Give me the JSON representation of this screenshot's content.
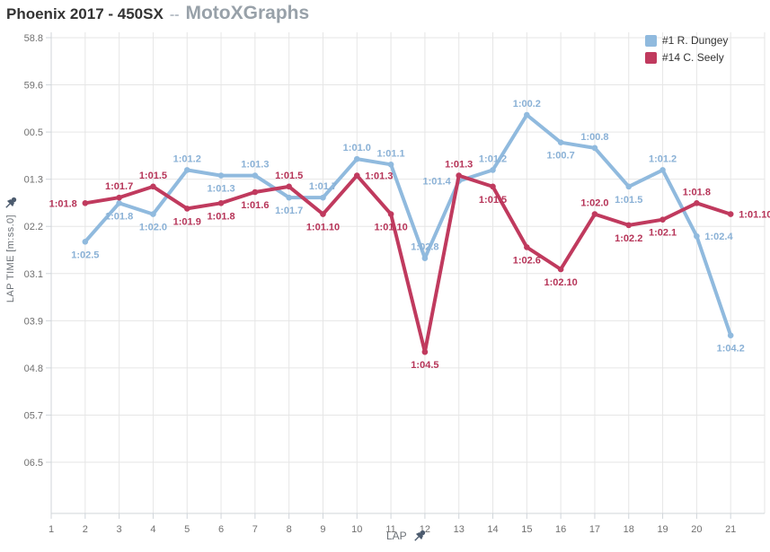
{
  "title": {
    "main": "Phoenix 2017 - 450SX",
    "separator": "--",
    "brand": "MotoXGraphs"
  },
  "icons": {
    "x_axis_pin": "pushpin-icon",
    "y_axis_pin": "pushpin-icon"
  },
  "colors": {
    "title_text": "#333333",
    "brand_text": "#98a1a9",
    "separator_text": "#b9c0c7",
    "grid": "#e6e6e6",
    "axis_line": "#d0d5da",
    "tick_text": "#707070",
    "axis_title_text": "#6b7076",
    "pin": "#4c5b6e",
    "background": "#ffffff",
    "dungey_blue": "#90bade",
    "seely_red": "#c03a5e"
  },
  "chart_data": {
    "type": "line",
    "title": "Phoenix 2017 - 450SX -- MotoXGraphs",
    "xlabel": "LAP",
    "ylabel": "LAP TIME [m:ss.0]",
    "grid": true,
    "legend_position": "top-right",
    "x_ticks": [
      1,
      2,
      3,
      4,
      5,
      6,
      7,
      8,
      9,
      10,
      11,
      12,
      13,
      14,
      15,
      16,
      17,
      18,
      19,
      20,
      21
    ],
    "x_range": [
      1,
      22
    ],
    "y_tick_labels": [
      "58.8",
      "59.6",
      "00.5",
      "01.3",
      "02.2",
      "03.1",
      "03.9",
      "04.8",
      "05.7",
      "06.5"
    ],
    "y_axis_seconds_range": [
      58.8,
      66.5
    ],
    "y_axis_direction": "time increases downward (faster laps plotted higher)",
    "series": [
      {
        "id": "dungey",
        "name": "#1 R. Dungey",
        "color": "#90bade",
        "label_color": "#8ab1d6",
        "points": [
          {
            "lap": 2,
            "time": "1:02.5",
            "seconds": 62.5,
            "label_side": "below"
          },
          {
            "lap": 3,
            "time": "1:01.8",
            "seconds": 61.8,
            "label_side": "below"
          },
          {
            "lap": 4,
            "time": "1:02.0",
            "seconds": 62.0,
            "label_side": "below"
          },
          {
            "lap": 5,
            "time": "1:01.2",
            "seconds": 61.2,
            "label_side": "above"
          },
          {
            "lap": 6,
            "time": "1:01.3",
            "seconds": 61.3,
            "label_side": "below"
          },
          {
            "lap": 7,
            "time": "1:01.3",
            "seconds": 61.3,
            "label_side": "above"
          },
          {
            "lap": 8,
            "time": "1:01.7",
            "seconds": 61.7,
            "label_side": "below"
          },
          {
            "lap": 9,
            "time": "1:01.7",
            "seconds": 61.7,
            "label_side": "above"
          },
          {
            "lap": 10,
            "time": "1:01.0",
            "seconds": 61.0,
            "label_side": "above"
          },
          {
            "lap": 11,
            "time": "1:01.1",
            "seconds": 61.1,
            "label_side": "above"
          },
          {
            "lap": 12,
            "time": "1:02.8",
            "seconds": 62.8,
            "label_side": "above"
          },
          {
            "lap": 13,
            "time": "1:01.4",
            "seconds": 61.4,
            "label_side": "left"
          },
          {
            "lap": 14,
            "time": "1:01.2",
            "seconds": 61.2,
            "label_side": "above"
          },
          {
            "lap": 15,
            "time": "1:00.2",
            "seconds": 60.2,
            "label_side": "above"
          },
          {
            "lap": 16,
            "time": "1:00.7",
            "seconds": 60.7,
            "label_side": "below"
          },
          {
            "lap": 17,
            "time": "1:00.8",
            "seconds": 60.8,
            "label_side": "above"
          },
          {
            "lap": 18,
            "time": "1:01.5",
            "seconds": 61.5,
            "label_side": "below"
          },
          {
            "lap": 19,
            "time": "1:01.2",
            "seconds": 61.2,
            "label_side": "above"
          },
          {
            "lap": 20,
            "time": "1:02.4",
            "seconds": 62.4,
            "label_side": "right"
          },
          {
            "lap": 21,
            "time": "1:04.2",
            "seconds": 64.2,
            "label_side": "below"
          }
        ]
      },
      {
        "id": "seely",
        "name": "#14 C. Seely",
        "color": "#c03a5e",
        "label_color": "#b63458",
        "points": [
          {
            "lap": 2,
            "time": "1:01.8",
            "seconds": 61.8,
            "label_side": "left"
          },
          {
            "lap": 3,
            "time": "1:01.7",
            "seconds": 61.7,
            "label_side": "above"
          },
          {
            "lap": 4,
            "time": "1:01.5",
            "seconds": 61.5,
            "label_side": "above"
          },
          {
            "lap": 5,
            "time": "1:01.9",
            "seconds": 61.9,
            "label_side": "below"
          },
          {
            "lap": 6,
            "time": "1:01.8",
            "seconds": 61.8,
            "label_side": "below"
          },
          {
            "lap": 7,
            "time": "1:01.6",
            "seconds": 61.6,
            "label_side": "below"
          },
          {
            "lap": 8,
            "time": "1:01.5",
            "seconds": 61.5,
            "label_side": "above"
          },
          {
            "lap": 9,
            "time": "1:01.10",
            "seconds": 62.0,
            "label_side": "below"
          },
          {
            "lap": 10,
            "time": "1:01.3",
            "seconds": 61.3,
            "label_side": "right"
          },
          {
            "lap": 11,
            "time": "1:01.10",
            "seconds": 62.0,
            "label_side": "below"
          },
          {
            "lap": 12,
            "time": "1:04.5",
            "seconds": 64.5,
            "label_side": "below"
          },
          {
            "lap": 13,
            "time": "1:01.3",
            "seconds": 61.3,
            "label_side": "above"
          },
          {
            "lap": 14,
            "time": "1:01.5",
            "seconds": 61.5,
            "label_side": "below"
          },
          {
            "lap": 15,
            "time": "1:02.6",
            "seconds": 62.6,
            "label_side": "below"
          },
          {
            "lap": 16,
            "time": "1:02.10",
            "seconds": 63.0,
            "label_side": "below"
          },
          {
            "lap": 17,
            "time": "1:02.0",
            "seconds": 62.0,
            "label_side": "above"
          },
          {
            "lap": 18,
            "time": "1:02.2",
            "seconds": 62.2,
            "label_side": "below"
          },
          {
            "lap": 19,
            "time": "1:02.1",
            "seconds": 62.1,
            "label_side": "below"
          },
          {
            "lap": 20,
            "time": "1:01.8",
            "seconds": 61.8,
            "label_side": "above"
          },
          {
            "lap": 21,
            "time": "1:01.10",
            "seconds": 62.0,
            "label_side": "right"
          }
        ]
      }
    ]
  }
}
